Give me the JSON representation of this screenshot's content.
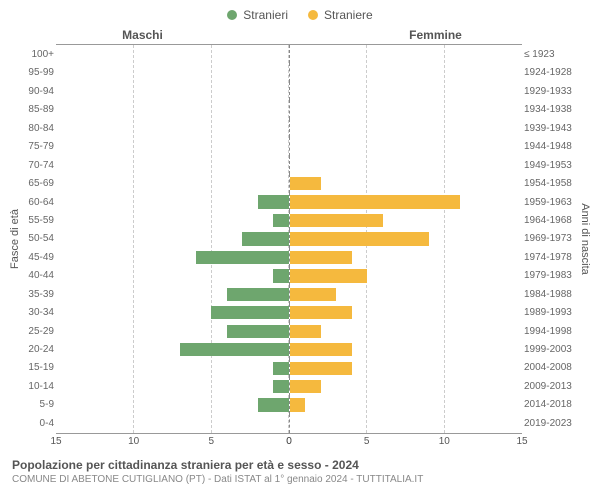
{
  "chart": {
    "type": "population-pyramid",
    "legend": {
      "male": {
        "label": "Stranieri",
        "color": "#6ea66e"
      },
      "female": {
        "label": "Straniere",
        "color": "#f5b93e"
      }
    },
    "headers": {
      "male": "Maschi",
      "female": "Femmine"
    },
    "y_axis_left": {
      "label": "Fasce di età"
    },
    "y_axis_right": {
      "label": "Anni di nascita"
    },
    "x_axis": {
      "min": -15,
      "max": 15,
      "ticks": [
        15,
        10,
        5,
        0,
        0,
        5,
        10,
        15
      ],
      "tick_positions_pct": [
        0,
        16.67,
        33.33,
        50,
        50,
        66.67,
        83.33,
        100
      ]
    },
    "background_color": "#ffffff",
    "grid_color": "#cccccc",
    "axis_color": "#999999",
    "bar_height_ratio": 0.72,
    "title_fontsize": 12,
    "subtitle_fontsize": 10,
    "tick_fontsize": 10,
    "rows": [
      {
        "age": "100+",
        "years": "≤ 1923",
        "male": 0,
        "female": 0
      },
      {
        "age": "95-99",
        "years": "1924-1928",
        "male": 0,
        "female": 0
      },
      {
        "age": "90-94",
        "years": "1929-1933",
        "male": 0,
        "female": 0
      },
      {
        "age": "85-89",
        "years": "1934-1938",
        "male": 0,
        "female": 0
      },
      {
        "age": "80-84",
        "years": "1939-1943",
        "male": 0,
        "female": 0
      },
      {
        "age": "75-79",
        "years": "1944-1948",
        "male": 0,
        "female": 0
      },
      {
        "age": "70-74",
        "years": "1949-1953",
        "male": 0,
        "female": 0
      },
      {
        "age": "65-69",
        "years": "1954-1958",
        "male": 0,
        "female": 2
      },
      {
        "age": "60-64",
        "years": "1959-1963",
        "male": 2,
        "female": 11
      },
      {
        "age": "55-59",
        "years": "1964-1968",
        "male": 1,
        "female": 6
      },
      {
        "age": "50-54",
        "years": "1969-1973",
        "male": 3,
        "female": 9
      },
      {
        "age": "45-49",
        "years": "1974-1978",
        "male": 6,
        "female": 4
      },
      {
        "age": "40-44",
        "years": "1979-1983",
        "male": 1,
        "female": 5
      },
      {
        "age": "35-39",
        "years": "1984-1988",
        "male": 4,
        "female": 3
      },
      {
        "age": "30-34",
        "years": "1989-1993",
        "male": 5,
        "female": 4
      },
      {
        "age": "25-29",
        "years": "1994-1998",
        "male": 4,
        "female": 2
      },
      {
        "age": "20-24",
        "years": "1999-2003",
        "male": 7,
        "female": 4
      },
      {
        "age": "15-19",
        "years": "2004-2008",
        "male": 1,
        "female": 4
      },
      {
        "age": "10-14",
        "years": "2009-2013",
        "male": 1,
        "female": 2
      },
      {
        "age": "5-9",
        "years": "2014-2018",
        "male": 2,
        "female": 1
      },
      {
        "age": "0-4",
        "years": "2019-2023",
        "male": 0,
        "female": 0
      }
    ]
  },
  "footer": {
    "title": "Popolazione per cittadinanza straniera per età e sesso - 2024",
    "subtitle": "COMUNE DI ABETONE CUTIGLIANO (PT) - Dati ISTAT al 1° gennaio 2024 - TUTTITALIA.IT"
  }
}
